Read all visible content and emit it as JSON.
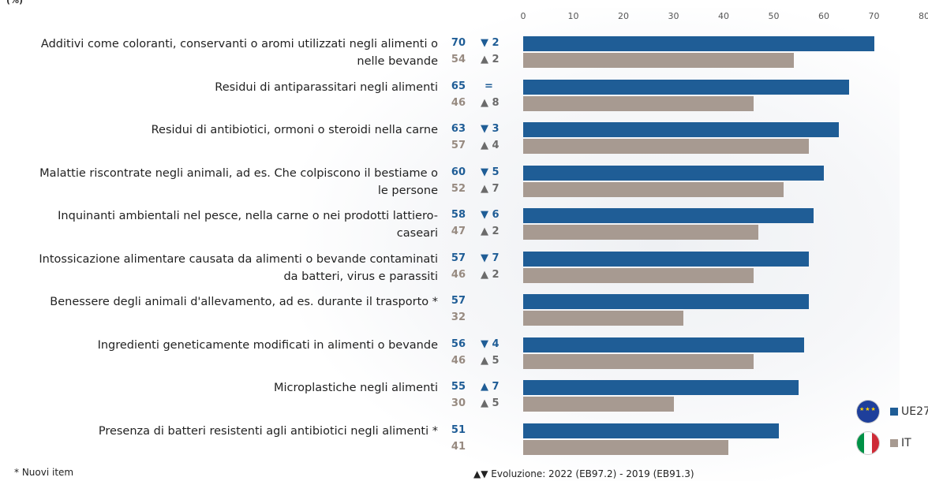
{
  "unit_label": "(%)",
  "footnote": "* Nuovi item",
  "evolution_note": "▲▼ Evoluzione:  2022 (EB97.2) - 2019 (EB91.3)",
  "legend": [
    {
      "label": "UE27",
      "color": "#1f5d96",
      "icon": "eu-flag-icon"
    },
    {
      "label": "IT",
      "color": "#a79a91",
      "icon": "italy-flag-icon"
    }
  ],
  "chart_data": {
    "type": "bar",
    "orientation": "horizontal",
    "xlim": [
      0,
      80
    ],
    "ticks": [
      0,
      10,
      20,
      30,
      40,
      50,
      60,
      70,
      80
    ],
    "series": [
      {
        "name": "UE27",
        "color": "#1f5d96"
      },
      {
        "name": "IT",
        "color": "#a79a91"
      }
    ],
    "categories": [
      {
        "label": "Additivi come coloranti, conservanti o aromi utilizzati negli alimenti o nelle bevande",
        "eu": 70,
        "it": 54,
        "eu_delta": "▼ 2",
        "it_delta": "▲ 2"
      },
      {
        "label": "Residui di antiparassitari negli alimenti",
        "eu": 65,
        "it": 46,
        "eu_delta": "=",
        "it_delta": "▲ 8"
      },
      {
        "label": "Residui di antibiotici, ormoni o steroidi nella carne",
        "eu": 63,
        "it": 57,
        "eu_delta": "▼ 3",
        "it_delta": "▲ 4"
      },
      {
        "label": "Malattie riscontrate negli animali, ad es. Che colpiscono il bestiame o le persone",
        "eu": 60,
        "it": 52,
        "eu_delta": "▼ 5",
        "it_delta": "▲ 7"
      },
      {
        "label": "Inquinanti ambientali nel pesce, nella carne o nei prodotti lattiero-caseari",
        "eu": 58,
        "it": 47,
        "eu_delta": "▼ 6",
        "it_delta": "▲ 2"
      },
      {
        "label": "Intossicazione alimentare causata da alimenti o bevande contaminati da batteri, virus e parassiti",
        "eu": 57,
        "it": 46,
        "eu_delta": "▼ 7",
        "it_delta": "▲ 2"
      },
      {
        "label": "Benessere degli animali d'allevamento, ad es. durante il trasporto *",
        "eu": 57,
        "it": 32,
        "eu_delta": "",
        "it_delta": ""
      },
      {
        "label": "Ingredienti geneticamente modificati in alimenti o bevande",
        "eu": 56,
        "it": 46,
        "eu_delta": "▼ 4",
        "it_delta": "▲ 5"
      },
      {
        "label": "Microplastiche negli alimenti",
        "eu": 55,
        "it": 30,
        "eu_delta": "▲ 7",
        "it_delta": "▲ 5"
      },
      {
        "label": "Presenza di batteri resistenti agli antibiotici negli alimenti *",
        "eu": 51,
        "it": 41,
        "eu_delta": "",
        "it_delta": ""
      }
    ]
  }
}
